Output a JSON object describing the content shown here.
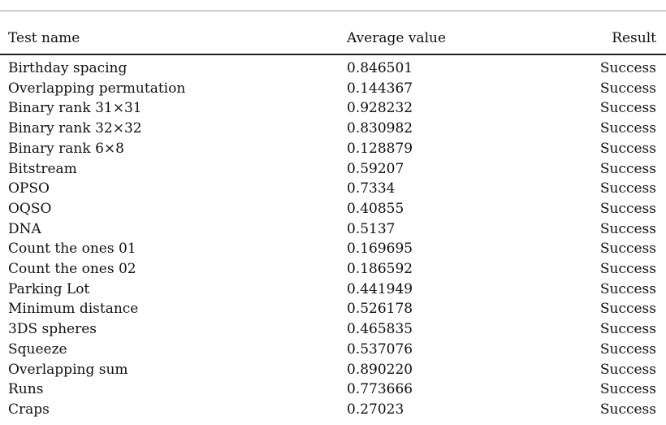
{
  "table": {
    "headers": {
      "name": "Test name",
      "value": "Average value",
      "result": "Result"
    },
    "rows": [
      {
        "name": "Birthday spacing",
        "value": "0.846501",
        "result": "Success"
      },
      {
        "name": "Overlapping permutation",
        "value": "0.144367",
        "result": "Success"
      },
      {
        "name": "Binary rank 31×31",
        "value": "0.928232",
        "result": "Success"
      },
      {
        "name": "Binary rank 32×32",
        "value": "0.830982",
        "result": "Success"
      },
      {
        "name": "Binary rank 6×8",
        "value": "0.128879",
        "result": "Success"
      },
      {
        "name": "Bitstream",
        "value": "0.59207",
        "result": "Success"
      },
      {
        "name": "OPSO",
        "value": "0.7334",
        "result": "Success"
      },
      {
        "name": "OQSO",
        "value": "0.40855",
        "result": "Success"
      },
      {
        "name": "DNA",
        "value": "0.5137",
        "result": "Success"
      },
      {
        "name": "Count the ones 01",
        "value": "0.169695",
        "result": "Success"
      },
      {
        "name": "Count the ones 02",
        "value": "0.186592",
        "result": "Success"
      },
      {
        "name": "Parking Lot",
        "value": "0.441949",
        "result": "Success"
      },
      {
        "name": "Minimum distance",
        "value": "0.526178",
        "result": "Success"
      },
      {
        "name": "3DS spheres",
        "value": "0.465835",
        "result": "Success"
      },
      {
        "name": "Squeeze",
        "value": "0.537076",
        "result": "Success"
      },
      {
        "name": "Overlapping sum",
        "value": "0.890220",
        "result": "Success"
      },
      {
        "name": "Runs",
        "value": "0.773666",
        "result": "Success"
      },
      {
        "name": "Craps",
        "value": "0.27023",
        "result": "Success"
      }
    ]
  }
}
